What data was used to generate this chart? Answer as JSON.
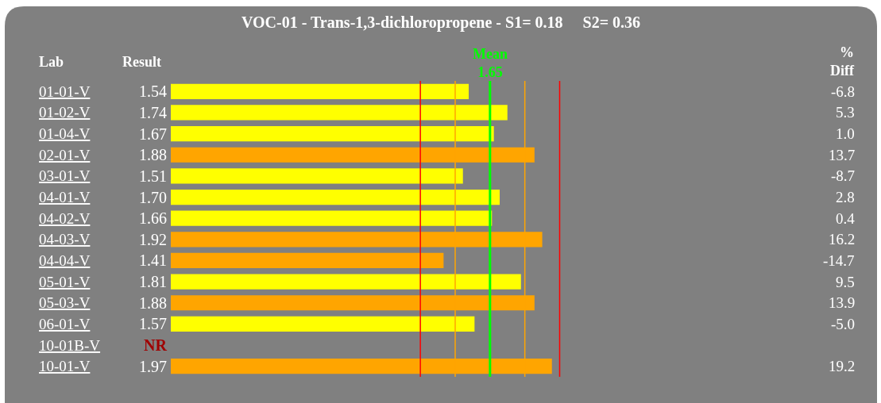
{
  "chart_data": {
    "type": "bar",
    "orientation": "horizontal",
    "title": "VOC-01 - Trans-1,3-dichloropropene - S1= 0.18     S2= 0.36",
    "ylabel": "Lab",
    "xlabel": "Result",
    "categories": [
      "01-01-V",
      "01-02-V",
      "01-04-V",
      "02-01-V",
      "03-01-V",
      "04-01-V",
      "04-02-V",
      "04-03-V",
      "04-04-V",
      "05-01-V",
      "05-03-V",
      "06-01-V",
      "10-01B-V",
      "10-01-V"
    ],
    "values": [
      1.54,
      1.74,
      1.67,
      1.88,
      1.51,
      1.7,
      1.66,
      1.92,
      1.41,
      1.81,
      1.88,
      1.57,
      null,
      1.97
    ],
    "value_labels": [
      "1.54",
      "1.74",
      "1.67",
      "1.88",
      "1.51",
      "1.70",
      "1.66",
      "1.92",
      "1.41",
      "1.81",
      "1.88",
      "1.57",
      "NR",
      "1.97"
    ],
    "colors": [
      "#ffff00",
      "#ffff00",
      "#ffff00",
      "#ffa500",
      "#ffff00",
      "#ffff00",
      "#ffff00",
      "#ffa500",
      "#ffa500",
      "#ffff00",
      "#ffa500",
      "#ffff00",
      "#ffff00",
      "#ffa500"
    ],
    "tick_labels": "y",
    "grid": false,
    "legend": false,
    "ref_lines": [
      {
        "axis": "x",
        "value": 1.29,
        "color": "#ff0000"
      },
      {
        "axis": "x",
        "value": 1.47,
        "color": "#ffa500"
      },
      {
        "axis": "x",
        "value": 1.65,
        "label": "Mean\n1.65",
        "color": "#00ff00"
      },
      {
        "axis": "x",
        "value": 1.83,
        "color": "#ffa500"
      },
      {
        "axis": "x",
        "value": 2.01,
        "color": "#ff0000"
      }
    ],
    "annotations": [
      "%\nDiff",
      "-6.8\n5.3\n1.0\n13.7\n-8.7\n2.8\n0.4\n16.2\n-14.7\n9.5\n13.9\n-5.0\n\n19.2"
    ]
  }
}
